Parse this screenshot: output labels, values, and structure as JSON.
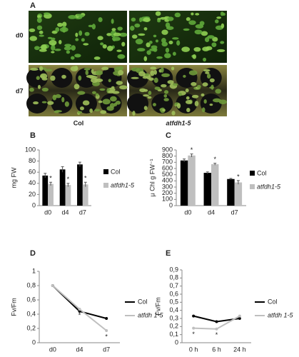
{
  "figure_a": {
    "panel": "A",
    "row_labels": [
      "d0",
      "d7"
    ],
    "genotypes": [
      "Col",
      "atfdh1-5"
    ]
  },
  "chart_data": [
    {
      "type": "bar",
      "panel": "B",
      "ylabel": "mg FW",
      "categories": [
        "d0",
        "d4",
        "d7"
      ],
      "ylim": [
        0,
        100
      ],
      "yticks": [
        0,
        20,
        40,
        60,
        80,
        100
      ],
      "significance_label": "*",
      "series": [
        {
          "name": "Col",
          "color": "#000000",
          "italic": false,
          "values": [
            54,
            65,
            74
          ],
          "errors": [
            4,
            5,
            4
          ],
          "significant": [
            false,
            false,
            false
          ]
        },
        {
          "name": "atfdh1-5",
          "color": "#bfbfbf",
          "italic": true,
          "values": [
            39,
            37,
            38
          ],
          "errors": [
            3,
            3,
            4
          ],
          "significant": [
            true,
            true,
            true
          ]
        }
      ]
    },
    {
      "type": "bar",
      "panel": "C",
      "ylabel": "μ Chl g FW⁻¹",
      "categories": [
        "d0",
        "d4",
        "d7"
      ],
      "ylim": [
        0,
        900
      ],
      "yticks": [
        0,
        100,
        200,
        300,
        400,
        500,
        600,
        700,
        800,
        900
      ],
      "significance_label": "*",
      "series": [
        {
          "name": "Col",
          "color": "#000000",
          "italic": false,
          "values": [
            730,
            530,
            430
          ],
          "errors": [
            25,
            15,
            10
          ],
          "significant": [
            false,
            false,
            false
          ]
        },
        {
          "name": "atfdh1-5",
          "color": "#bfbfbf",
          "italic": true,
          "values": [
            810,
            670,
            375
          ],
          "errors": [
            25,
            15,
            30
          ],
          "significant": [
            true,
            true,
            true
          ]
        }
      ]
    },
    {
      "type": "line",
      "panel": "D",
      "ylabel": "Fv/Fm",
      "categories": [
        "d0",
        "d4",
        "d7"
      ],
      "ylim": [
        0,
        1
      ],
      "yticks": [
        0,
        {
          "value": 0.2,
          "label": "0,2"
        },
        {
          "value": 0.4,
          "label": "0,4"
        },
        {
          "value": 0.6,
          "label": "0,6"
        },
        {
          "value": 0.8,
          "label": "0,8"
        },
        1
      ],
      "significance_label": "*",
      "series": [
        {
          "name": "Col",
          "color": "#000000",
          "italic": false,
          "values": [
            0.8,
            0.44,
            0.34
          ],
          "significant": [
            false,
            false,
            false
          ]
        },
        {
          "name": "atfdh 1-5",
          "color": "#bfbfbf",
          "italic": true,
          "values": [
            0.8,
            0.47,
            0.17
          ],
          "significant": [
            false,
            true,
            true
          ]
        }
      ]
    },
    {
      "type": "line",
      "panel": "E",
      "ylabel": "Fv/Fm",
      "categories": [
        "0 h",
        "6 h",
        "24 h"
      ],
      "ylim": [
        0,
        0.9
      ],
      "yticks": [
        0,
        {
          "value": 0.1,
          "label": "0,1"
        },
        {
          "value": 0.2,
          "label": "0,2"
        },
        {
          "value": 0.3,
          "label": "0,3"
        },
        {
          "value": 0.4,
          "label": "0,4"
        },
        {
          "value": 0.5,
          "label": "0,5"
        },
        {
          "value": 0.6,
          "label": "0,6"
        },
        {
          "value": 0.7,
          "label": "0,7"
        },
        {
          "value": 0.8,
          "label": "0,8"
        },
        {
          "value": 0.9,
          "label": "0,9"
        }
      ],
      "significance_label": "*",
      "series": [
        {
          "name": "Col",
          "color": "#000000",
          "italic": false,
          "values": [
            0.33,
            0.26,
            0.3
          ],
          "significant": [
            false,
            false,
            false
          ]
        },
        {
          "name": "atfdh 1-5",
          "color": "#bfbfbf",
          "italic": true,
          "values": [
            0.18,
            0.17,
            0.33
          ],
          "significant": [
            true,
            true,
            false
          ]
        }
      ]
    }
  ]
}
